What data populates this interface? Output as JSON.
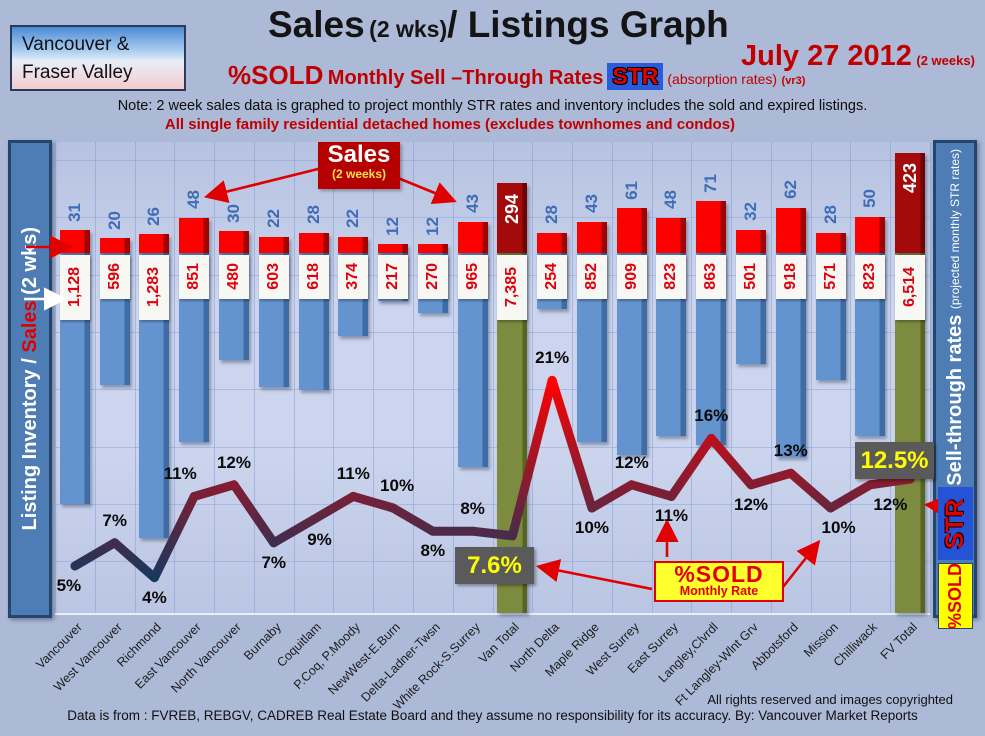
{
  "header": {
    "region_box": {
      "line1": "Vancouver &",
      "line2": "Fraser Valley"
    },
    "title": {
      "sales": "Sales",
      "wks": "(2 wks)",
      "rest": "/ Listings Graph"
    },
    "date": {
      "main": "July 27 2012",
      "sub": "(2 weeks)"
    },
    "subtitle": {
      "sold": "%SOLD",
      "rates": "Monthly Sell –Through Rates",
      "str": "STR",
      "absorption": "(absorption rates)",
      "version": "(vr3)"
    },
    "note": "Note: 2 week sales data is graphed to project monthly STR rates and inventory includes the sold and expired listings.",
    "scope": "All single family residential detached homes (excludes townhomes and condos)"
  },
  "axes": {
    "left": {
      "part1": "Listing Inventory /",
      "part2": "Sales",
      "part3": "(2 wks)"
    },
    "right": {
      "part1": "Sell-through rates",
      "part2": "(projected monthly STR rates)",
      "str_badge": "STR",
      "sold_badge": "%SOLD"
    }
  },
  "annotations": {
    "sales_callout": {
      "title": "Sales",
      "sub": "(2 weeks)"
    },
    "pct_sold_callout": {
      "title": "%SOLD",
      "sub": "Monthly Rate"
    }
  },
  "footer": {
    "rights": "All rights reserved and  images copyrighted",
    "source": "Data is from : FVREB, REBGV, CADREB Real Estate Board and they assume no responsibility for its accuracy. By: Vancouver Market Reports"
  },
  "colors": {
    "accent_red": "#c00000",
    "bright_red": "#e10000",
    "sales_bar": "#fb0200",
    "total_sales_bar": "#a50a0a",
    "inventory_bar": "#6494cf",
    "total_bar_green": "#7c8b3f",
    "sales_value_blue": "#3e6db6",
    "inventory_value_red": "#e1000c",
    "line_low": "#17375e",
    "line_high": "#ff0000",
    "pct_box_bg": "#5a5a5a",
    "pct_box_text": "#ffff00",
    "axis_box": "#4e7db6",
    "str_badge_bg": "#2a5bdb",
    "sold_badge_bg": "#ffff00"
  },
  "chart_data": {
    "type": "bar+line",
    "title": "Sales (2 wks)/ Listings Graph",
    "series": [
      {
        "name": "Sales (2 weeks)",
        "type": "bar"
      },
      {
        "name": "Listing Inventory",
        "type": "bar"
      },
      {
        "name": "%SOLD Monthly Sell-Through Rate",
        "type": "line"
      }
    ],
    "legend_position": "none",
    "grid": true,
    "regions": [
      {
        "name": "Vancouver",
        "sales": 31,
        "inventory": 1128,
        "inventory_label": "1,128",
        "pct_value": 5,
        "pct": "5%",
        "total": false,
        "side": "below",
        "dx": -6
      },
      {
        "name": "West Vancouver",
        "sales": 20,
        "inventory": 596,
        "inventory_label": "596",
        "pct_value": 7,
        "pct": "7%",
        "total": false,
        "side": "above",
        "dx": 0
      },
      {
        "name": "Richmond",
        "sales": 26,
        "inventory": 1283,
        "inventory_label": "1,283",
        "pct_value": 4,
        "pct": "4%",
        "total": false,
        "side": "below",
        "dx": 0
      },
      {
        "name": "East Vancouver",
        "sales": 48,
        "inventory": 851,
        "inventory_label": "851",
        "pct_value": 11,
        "pct": "11%",
        "total": false,
        "side": "above",
        "dx": -14
      },
      {
        "name": "North Vancouver",
        "sales": 30,
        "inventory": 480,
        "inventory_label": "480",
        "pct_value": 12,
        "pct": "12%",
        "total": false,
        "side": "above",
        "dx": 0
      },
      {
        "name": "Burnaby",
        "sales": 22,
        "inventory": 603,
        "inventory_label": "603",
        "pct_value": 7,
        "pct": "7%",
        "total": false,
        "side": "below",
        "dx": 0
      },
      {
        "name": "Coquitlam",
        "sales": 28,
        "inventory": 618,
        "inventory_label": "618",
        "pct_value": 9,
        "pct": "9%",
        "total": false,
        "side": "below",
        "dx": 6
      },
      {
        "name": "P.Coq, P.Moody",
        "sales": 22,
        "inventory": 374,
        "inventory_label": "374",
        "pct_value": 11,
        "pct": "11%",
        "total": false,
        "side": "above",
        "dx": 0
      },
      {
        "name": "NewWest-E.Burn",
        "sales": 12,
        "inventory": 217,
        "inventory_label": "217",
        "pct_value": 10,
        "pct": "10%",
        "total": false,
        "side": "above",
        "dx": 4
      },
      {
        "name": "Delta-Ladner-Twsn",
        "sales": 12,
        "inventory": 270,
        "inventory_label": "270",
        "pct_value": 8,
        "pct": "8%",
        "total": false,
        "side": "below",
        "dx": 0
      },
      {
        "name": "White Rock-S.Surrey",
        "sales": 43,
        "inventory": 965,
        "inventory_label": "965",
        "pct_value": 8,
        "pct": "8%",
        "total": false,
        "side": "above",
        "dx": 0
      },
      {
        "name": "Van Total",
        "sales": 294,
        "inventory": 7385,
        "inventory_label": "7,385",
        "pct_value": 7.6,
        "pct": "7.6%",
        "total": true,
        "side": "box",
        "dx": 0
      },
      {
        "name": "North Delta",
        "sales": 28,
        "inventory": 254,
        "inventory_label": "254",
        "pct_value": 21,
        "pct": "21%",
        "total": false,
        "side": "above",
        "dx": 0
      },
      {
        "name": "Maple Ridge",
        "sales": 43,
        "inventory": 852,
        "inventory_label": "852",
        "pct_value": 10,
        "pct": "10%",
        "total": false,
        "side": "below",
        "dx": 0
      },
      {
        "name": "West Surrey",
        "sales": 61,
        "inventory": 909,
        "inventory_label": "909",
        "pct_value": 12,
        "pct": "12%",
        "total": false,
        "side": "above",
        "dx": 0
      },
      {
        "name": "East Surrey",
        "sales": 48,
        "inventory": 823,
        "inventory_label": "823",
        "pct_value": 11,
        "pct": "11%",
        "total": false,
        "side": "below",
        "dx": 0
      },
      {
        "name": "Langley,Clvrdl",
        "sales": 71,
        "inventory": 863,
        "inventory_label": "863",
        "pct_value": 16,
        "pct": "16%",
        "total": false,
        "side": "above",
        "dx": 0
      },
      {
        "name": "Ft Langley-Wlnt Grv",
        "sales": 32,
        "inventory": 501,
        "inventory_label": "501",
        "pct_value": 12,
        "pct": "12%",
        "total": false,
        "side": "below",
        "dx": 0
      },
      {
        "name": "Abbotsford",
        "sales": 62,
        "inventory": 918,
        "inventory_label": "918",
        "pct_value": 13,
        "pct": "13%",
        "total": false,
        "side": "above",
        "dx": 0
      },
      {
        "name": "Mission",
        "sales": 28,
        "inventory": 571,
        "inventory_label": "571",
        "pct_value": 10,
        "pct": "10%",
        "total": false,
        "side": "below",
        "dx": 8
      },
      {
        "name": "Chilliwack",
        "sales": 50,
        "inventory": 823,
        "inventory_label": "823",
        "pct_value": 12,
        "pct": "12%",
        "total": false,
        "side": "below",
        "dx": 20
      },
      {
        "name": "FV Total",
        "sales": 423,
        "inventory": 6514,
        "inventory_label": "6,514",
        "pct_value": 12.5,
        "pct": "12.5%",
        "total": true,
        "side": "box",
        "dx": 0
      }
    ]
  }
}
